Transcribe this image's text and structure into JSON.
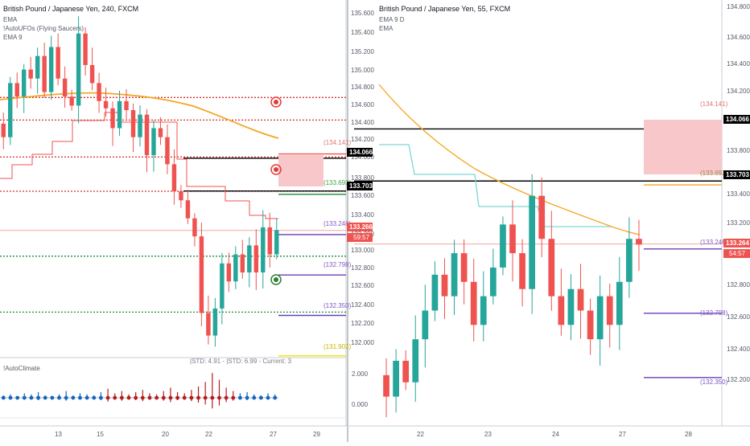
{
  "colors": {
    "up": "#26a69a",
    "down": "#ef5350",
    "ema_orange": "#f5a623",
    "ema_cyan": "#7fd6d6",
    "band_red": "#ef5350",
    "level_black": "#000000",
    "purple": "#6a3db8",
    "green_dotted": "#1b8a3a",
    "red_dotted": "#d32f2f",
    "yellow": "#f5e000",
    "zone_fill": "#f8c7c9",
    "climate_blue": "#1565c0",
    "climate_red": "#b71c1c"
  },
  "left": {
    "title": "British Pound / Japanese Yen, 240, FXCM",
    "legend": [
      "EMA",
      "!AutoUFOs (Flying Saucers)",
      "EMA 9"
    ],
    "price_labels": [
      "135.600",
      "135.400",
      "135.200",
      "135.000",
      "134.800",
      "134.600",
      "134.400",
      "134.200",
      "134.000",
      "133.800",
      "133.600",
      "133.400",
      "133.200",
      "133.000",
      "132.800",
      "132.600",
      "132.400",
      "132.200",
      "132.000"
    ],
    "x_labels": [
      "13",
      "15",
      "20",
      "22",
      "27",
      "29"
    ],
    "level_tags": [
      {
        "text": "134.066",
        "style": "black"
      },
      {
        "text": "133.703",
        "style": "black"
      },
      {
        "text": "133.266",
        "style": "red"
      },
      {
        "text": "59:57",
        "style": "red"
      }
    ],
    "line_labels": [
      "(134.141)",
      "(133.693)",
      "(133.246)",
      "(132.798)",
      "(132.350)",
      "(131.902)"
    ],
    "indicator": {
      "name": "!AutoClimate",
      "info": "|STD: 4.91 - |STD: 6.99 - Current: 3",
      "axis_labels": [
        "2.000",
        "0.000"
      ]
    }
  },
  "right": {
    "title": "British Pound / Japanese Yen, 55, FXCM",
    "legend": [
      "EMA 9 D",
      "EMA"
    ],
    "price_labels": [
      "134.800",
      "134.600",
      "134.400",
      "134.200",
      "134.000",
      "133.800",
      "133.600",
      "133.400",
      "133.200",
      "133.000",
      "132.800",
      "132.600",
      "132.400",
      "132.200"
    ],
    "x_labels": [
      "22",
      "23",
      "24",
      "27",
      "28"
    ],
    "level_tags": [
      {
        "text": "134.066",
        "style": "black"
      },
      {
        "text": "133.703",
        "style": "black"
      },
      {
        "text": "133.264",
        "style": "red"
      },
      {
        "text": "54:57",
        "style": "red"
      }
    ],
    "line_labels": [
      "(134.141)",
      "(133.693)",
      "(133.246)",
      "(132.798)",
      "(132.350)"
    ]
  },
  "chart_data": [
    {
      "type": "candlestick",
      "title": "British Pound / Japanese Yen, 240, FXCM",
      "ylim": [
        131.9,
        135.75
      ],
      "levels": {
        "resistance_black": [
          134.066,
          133.703
        ],
        "last_price": 133.266,
        "projections": [
          134.141,
          133.693,
          133.246,
          132.798,
          132.35,
          131.902
        ],
        "dotted_red": [
          134.74,
          134.49,
          134.08,
          133.7
        ],
        "dotted_green": [
          132.98,
          132.36
        ]
      },
      "series_close": [
        134.3,
        134.9,
        134.75,
        135.05,
        134.95,
        135.2,
        134.8,
        135.3,
        134.95,
        134.75,
        134.65,
        135.45,
        135.1,
        134.9,
        134.7,
        134.62,
        134.4,
        134.7,
        134.6,
        134.3,
        134.55,
        134.1,
        134.4,
        134.3,
        134.0,
        133.7,
        133.6,
        133.4,
        133.2,
        132.35,
        132.1,
        132.4,
        132.9,
        132.7,
        133.0,
        132.8,
        133.1,
        132.8,
        133.3,
        133.0,
        133.27
      ]
    },
    {
      "type": "candlestick",
      "title": "British Pound / Japanese Yen, 55, FXCM",
      "ylim": [
        132.08,
        134.92
      ],
      "levels": {
        "resistance_black": [
          134.066,
          133.703
        ],
        "last_price": 133.264,
        "projections": [
          134.141,
          133.693,
          133.246,
          132.798,
          132.35
        ]
      },
      "series_close": [
        132.2,
        132.45,
        132.3,
        132.6,
        132.8,
        133.05,
        132.9,
        133.2,
        133.0,
        132.7,
        132.9,
        133.1,
        133.4,
        133.2,
        132.95,
        133.6,
        133.3,
        132.9,
        132.7,
        132.95,
        132.8,
        132.6,
        132.9,
        132.7,
        133.0,
        133.3,
        133.26
      ]
    },
    {
      "type": "bar",
      "title": "!AutoClimate",
      "values": [
        0.2,
        0.3,
        0.1,
        0.4,
        0.3,
        0.5,
        0.2,
        0.1,
        0.3,
        0.6,
        0.2,
        0.4,
        0.3,
        0.2,
        0.5,
        0.8,
        0.4,
        0.6,
        0.3,
        0.5,
        0.7,
        0.4,
        0.3,
        0.6,
        0.9,
        0.5,
        0.4,
        0.7,
        1.0,
        1.4,
        2.2,
        1.6,
        0.9,
        0.6,
        0.4,
        0.5,
        0.3,
        0.2,
        0.4,
        0.3
      ]
    }
  ]
}
